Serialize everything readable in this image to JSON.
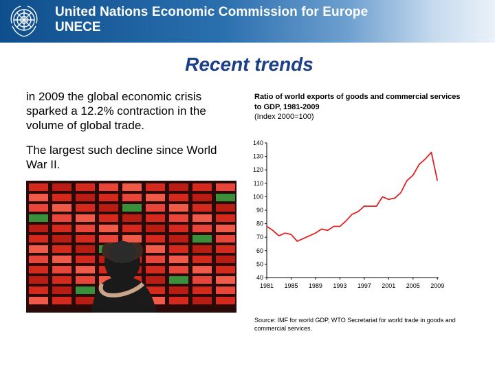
{
  "header": {
    "org_name": "United Nations Economic Commission for Europe",
    "abbreviation": "UNECE",
    "emblem_icon": "un-emblem-icon"
  },
  "slide": {
    "title": "Recent trends",
    "paragraph1": "in 2009 the global economic crisis sparked a 12.2% contraction in the volume of global trade.",
    "paragraph2": "The largest such decline since World War II.",
    "photo_icon": "trading-board-photo-icon"
  },
  "chart_header": {
    "title": "Ratio of world exports of goods and commercial services to GDP, 1981-2009",
    "subtitle": "(Index 2000=100)"
  },
  "source": "Source: IMF for world GDP, WTO Secretariat for world trade in goods and commercial services.",
  "colors": {
    "header_dark": "#0f4e8c",
    "title": "#1c3f8c",
    "line": "#e02020"
  },
  "chart_data": {
    "type": "line",
    "title": "Ratio of world exports of goods and commercial services to GDP, 1981-2009",
    "subtitle": "(Index 2000=100)",
    "xlabel": "",
    "ylabel": "",
    "xlim": [
      1981,
      2009.2
    ],
    "ylim": [
      40,
      140
    ],
    "yticks": [
      40,
      50,
      60,
      70,
      80,
      90,
      100,
      110,
      120,
      130,
      140
    ],
    "xticks": [
      1981,
      1985,
      1989,
      1993,
      1997,
      2001,
      2005,
      2009
    ],
    "grid": false,
    "legend": "none",
    "series": [
      {
        "x": [
          1981,
          1982,
          1983,
          1984,
          1985,
          1986,
          1987,
          1988,
          1989,
          1990,
          1991,
          1992,
          1993,
          1994,
          1995,
          1996,
          1997,
          1998,
          1999,
          2000,
          2001,
          2002,
          2003,
          2004,
          2005,
          2006,
          2007,
          2008,
          2009
        ],
        "values": [
          78,
          75,
          71,
          73,
          72,
          67,
          69,
          71,
          73,
          76,
          75,
          78,
          78,
          82,
          87,
          89,
          93,
          93,
          93,
          100,
          98,
          99,
          103,
          112,
          116,
          124,
          128,
          133,
          112
        ]
      }
    ]
  }
}
